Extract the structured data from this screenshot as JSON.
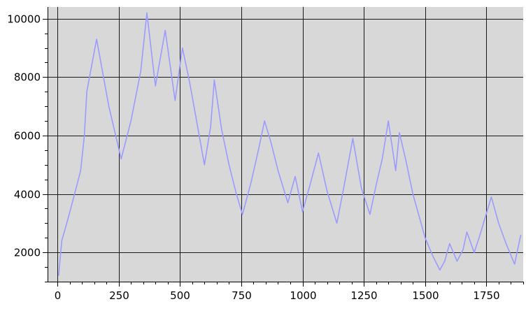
{
  "chart_data": {
    "type": "line",
    "title": "",
    "xlabel": "",
    "ylabel": "",
    "xlim": [
      -40,
      1900
    ],
    "ylim": [
      1000,
      10400
    ],
    "grid": true,
    "background_color": "#d8d8d8",
    "line_color": "#9b9bff",
    "x_ticks": [
      0,
      250,
      500,
      750,
      1000,
      1250,
      1500,
      1750
    ],
    "x_tick_labels": [
      "0",
      "250",
      "500",
      "750",
      "1000",
      "1250",
      "1500",
      "1750"
    ],
    "y_ticks": [
      2000,
      4000,
      6000,
      8000,
      10000
    ],
    "y_tick_labels": [
      "2000",
      "4000",
      "6000",
      "8000",
      "10000"
    ],
    "series": [
      {
        "name": "",
        "x": [
          5,
          18,
          45,
          70,
          95,
          110,
          120,
          160,
          210,
          260,
          300,
          340,
          365,
          400,
          440,
          480,
          510,
          540,
          570,
          600,
          625,
          640,
          670,
          700,
          730,
          755,
          790,
          820,
          845,
          870,
          900,
          940,
          970,
          1000,
          1030,
          1065,
          1100,
          1140,
          1170,
          1205,
          1240,
          1275,
          1300,
          1325,
          1350,
          1380,
          1395,
          1420,
          1450,
          1480,
          1500,
          1530,
          1560,
          1580,
          1600,
          1630,
          1655,
          1670,
          1700,
          1720,
          1745,
          1770,
          1800,
          1830,
          1865,
          1890
        ],
        "values": [
          1200,
          2400,
          3200,
          4000,
          4800,
          6000,
          7500,
          9300,
          7000,
          5200,
          6500,
          8200,
          10200,
          7700,
          9600,
          7200,
          9000,
          7800,
          6400,
          5000,
          6300,
          7900,
          6200,
          5000,
          4000,
          3300,
          4400,
          5500,
          6500,
          5800,
          4800,
          3700,
          4600,
          3400,
          4300,
          5400,
          4100,
          3000,
          4300,
          5900,
          4200,
          3300,
          4300,
          5200,
          6500,
          4800,
          6100,
          5200,
          4000,
          3100,
          2500,
          1900,
          1400,
          1700,
          2300,
          1700,
          2100,
          2700,
          2000,
          2500,
          3200,
          3900,
          3000,
          2300,
          1600,
          2600
        ]
      }
    ]
  }
}
